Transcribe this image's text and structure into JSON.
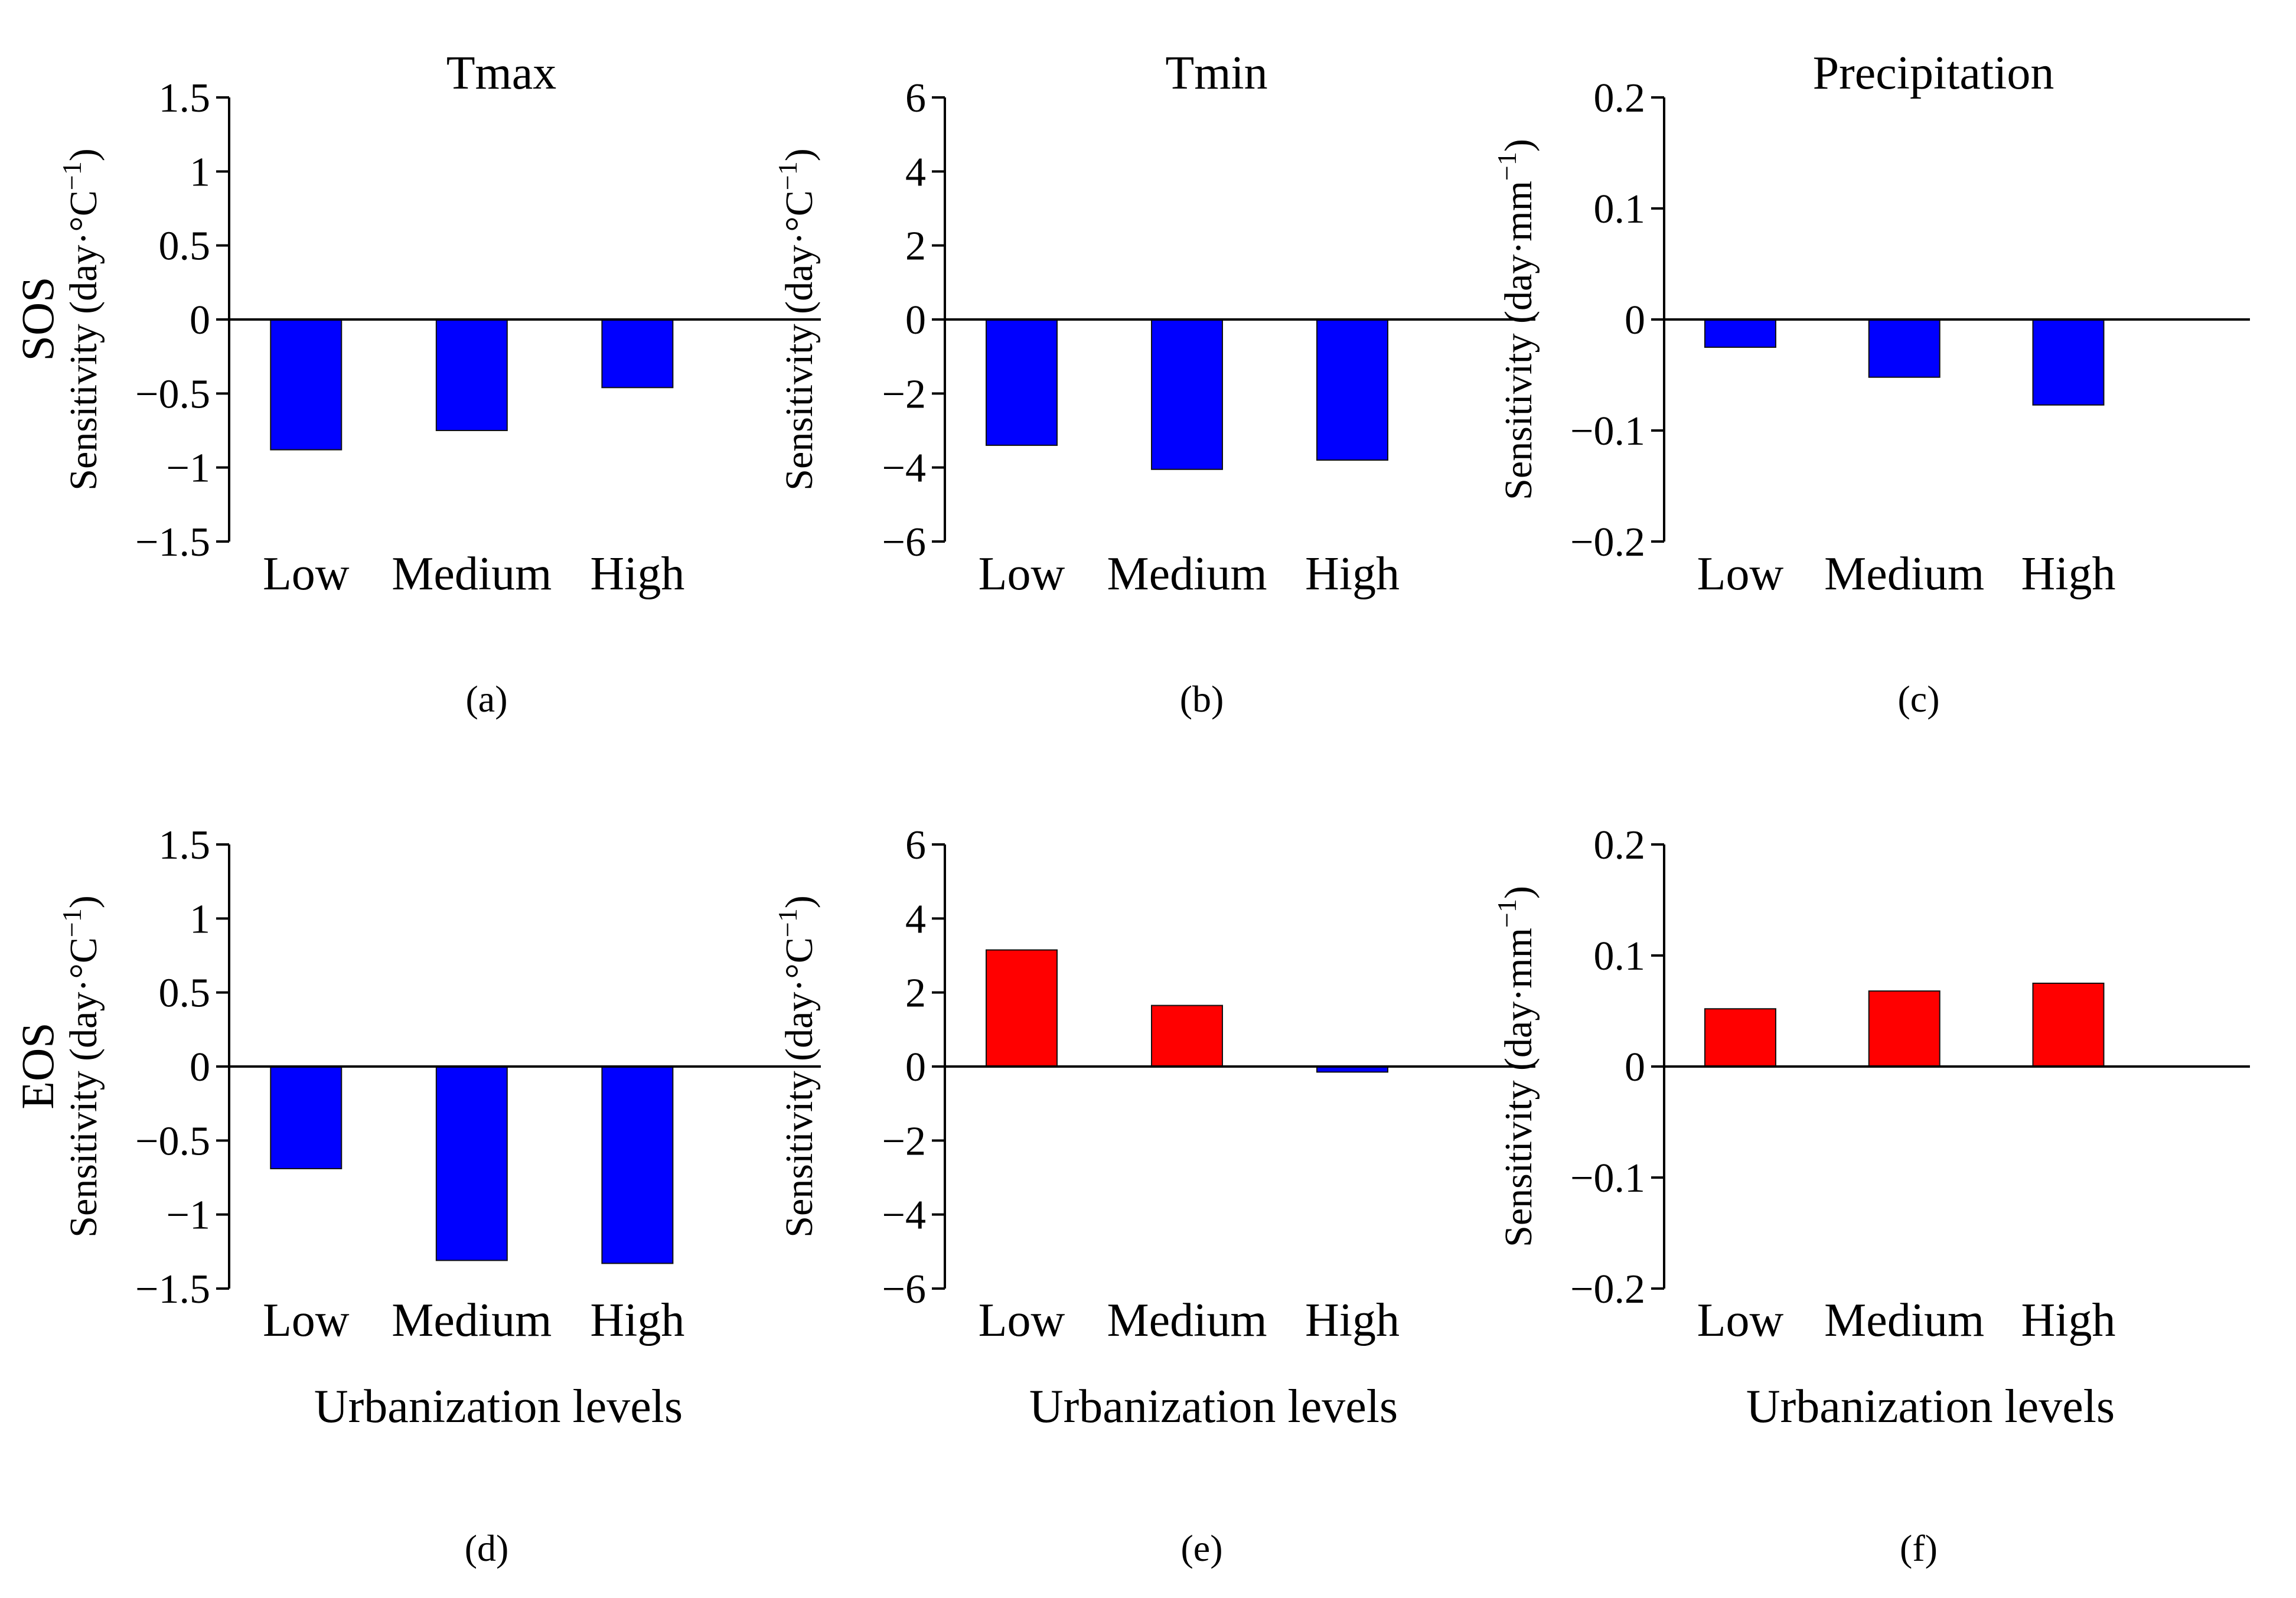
{
  "row_labels": [
    "SOS",
    "EOS"
  ],
  "x_axis_title": "Urbanization levels",
  "colors": {
    "positive": "#FF0000",
    "negative": "#0000FF",
    "axis": "#000000"
  },
  "chart_data": [
    {
      "panel": "(a)",
      "row": 0,
      "col": 0,
      "type": "bar",
      "title": "Tmax",
      "ylabel_prefix": "Sensitivity (day·°C",
      "ylabel_sup": "−1",
      "ylabel_suffix": ")",
      "xlabel": "",
      "categories": [
        "Low",
        "Medium",
        "High"
      ],
      "values": [
        -0.88,
        -0.75,
        -0.46
      ],
      "ylim": [
        -1.5,
        1.5
      ],
      "yticks": [
        -1.5,
        -1,
        -0.5,
        0,
        0.5,
        1,
        1.5
      ],
      "yticklabels": [
        "−1.5",
        "−1",
        "−0.5",
        "0",
        "0.5",
        "1",
        "1.5"
      ],
      "grid": false
    },
    {
      "panel": "(b)",
      "row": 0,
      "col": 1,
      "type": "bar",
      "title": "Tmin",
      "ylabel_prefix": "Sensitivity (day·°C",
      "ylabel_sup": "−1",
      "ylabel_suffix": ")",
      "xlabel": "",
      "categories": [
        "Low",
        "Medium",
        "High"
      ],
      "values": [
        -3.4,
        -4.05,
        -3.8
      ],
      "ylim": [
        -6,
        6
      ],
      "yticks": [
        -6,
        -4,
        -2,
        0,
        2,
        4,
        6
      ],
      "yticklabels": [
        "−6",
        "−4",
        "−2",
        "0",
        "2",
        "4",
        "6"
      ],
      "grid": false
    },
    {
      "panel": "(c)",
      "row": 0,
      "col": 2,
      "type": "bar",
      "title": "Precipitation",
      "ylabel_prefix": "Sensitivity (day·mm",
      "ylabel_sup": "−1",
      "ylabel_suffix": ")",
      "xlabel": "",
      "categories": [
        "Low",
        "Medium",
        "High"
      ],
      "values": [
        -0.025,
        -0.052,
        -0.077
      ],
      "ylim": [
        -0.2,
        0.2
      ],
      "yticks": [
        -0.2,
        -0.1,
        0,
        0.1,
        0.2
      ],
      "yticklabels": [
        "−0.2",
        "−0.1",
        "0",
        "0.1",
        "0.2"
      ],
      "grid": false
    },
    {
      "panel": "(d)",
      "row": 1,
      "col": 0,
      "type": "bar",
      "title": "",
      "ylabel_prefix": "Sensitivity (day·°C",
      "ylabel_sup": "−1",
      "ylabel_suffix": ")",
      "xlabel": "Urbanization levels",
      "categories": [
        "Low",
        "Medium",
        "High"
      ],
      "values": [
        -0.69,
        -1.31,
        -1.33
      ],
      "ylim": [
        -1.5,
        1.5
      ],
      "yticks": [
        -1.5,
        -1,
        -0.5,
        0,
        0.5,
        1,
        1.5
      ],
      "yticklabels": [
        "−1.5",
        "−1",
        "−0.5",
        "0",
        "0.5",
        "1",
        "1.5"
      ],
      "grid": false
    },
    {
      "panel": "(e)",
      "row": 1,
      "col": 1,
      "type": "bar",
      "title": "",
      "ylabel_prefix": "Sensitivity (day·°C",
      "ylabel_sup": "−1",
      "ylabel_suffix": ")",
      "xlabel": "Urbanization levels",
      "categories": [
        "Low",
        "Medium",
        "High"
      ],
      "values": [
        3.15,
        1.65,
        -0.15
      ],
      "ylim": [
        -6,
        6
      ],
      "yticks": [
        -6,
        -4,
        -2,
        0,
        2,
        4,
        6
      ],
      "yticklabels": [
        "−6",
        "−4",
        "−2",
        "0",
        "2",
        "4",
        "6"
      ],
      "grid": false
    },
    {
      "panel": "(f)",
      "row": 1,
      "col": 2,
      "type": "bar",
      "title": "",
      "ylabel_prefix": "Sensitivity (day·mm",
      "ylabel_sup": "−1",
      "ylabel_suffix": ")",
      "xlabel": "Urbanization levels",
      "categories": [
        "Low",
        "Medium",
        "High"
      ],
      "values": [
        0.052,
        0.068,
        0.075
      ],
      "ylim": [
        -0.2,
        0.2
      ],
      "yticks": [
        -0.2,
        -0.1,
        0,
        0.1,
        0.2
      ],
      "yticklabels": [
        "−0.2",
        "−0.1",
        "0",
        "0.1",
        "0.2"
      ],
      "grid": false
    }
  ]
}
